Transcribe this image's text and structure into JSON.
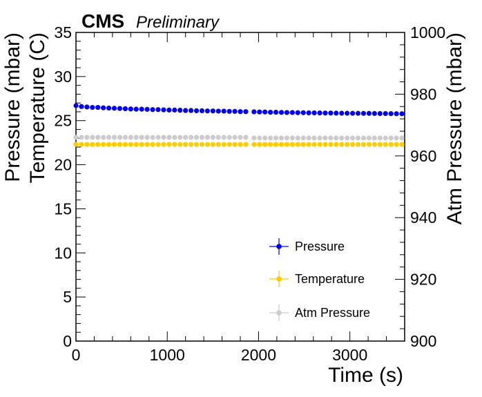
{
  "header": {
    "experiment": "CMS",
    "status": "Preliminary"
  },
  "chart_data": {
    "type": "scatter",
    "xlabel": "Time (s)",
    "ylabel_line1": "Pressure (mbar)",
    "ylabel_line2": "Temperature (C)",
    "ylabel_right": "Atm Pressure (mbar)",
    "xlim": [
      0,
      3600
    ],
    "ylim": [
      0,
      35
    ],
    "ylim_right": [
      900,
      1000
    ],
    "xticks": [
      "0",
      "1000",
      "2000",
      "3000"
    ],
    "yticks": [
      "0",
      "5",
      "10",
      "15",
      "20",
      "25",
      "30",
      "35"
    ],
    "yticks_right": [
      "900",
      "920",
      "940",
      "960",
      "980",
      "1000"
    ],
    "x": [
      0,
      60,
      120,
      180,
      240,
      300,
      360,
      420,
      480,
      540,
      600,
      660,
      720,
      780,
      840,
      900,
      960,
      1020,
      1080,
      1140,
      1200,
      1260,
      1320,
      1380,
      1440,
      1500,
      1560,
      1620,
      1680,
      1740,
      1800,
      1860,
      1950,
      2010,
      2070,
      2130,
      2190,
      2250,
      2310,
      2370,
      2430,
      2490,
      2550,
      2610,
      2670,
      2730,
      2790,
      2850,
      2910,
      2970,
      3030,
      3090,
      3150,
      3210,
      3270,
      3330,
      3390,
      3450,
      3510,
      3570
    ],
    "series": [
      {
        "name": "Pressure",
        "axis": "left",
        "color": "#0000ee",
        "values": [
          26.7,
          26.6,
          26.55,
          26.5,
          26.5,
          26.45,
          26.42,
          26.4,
          26.38,
          26.35,
          26.32,
          26.3,
          26.3,
          26.28,
          26.25,
          26.25,
          26.22,
          26.2,
          26.2,
          26.18,
          26.15,
          26.15,
          26.12,
          26.12,
          26.1,
          26.1,
          26.08,
          26.08,
          26.05,
          26.05,
          26.02,
          26.02,
          26.0,
          25.98,
          25.98,
          25.95,
          25.95,
          25.93,
          25.92,
          25.92,
          25.9,
          25.9,
          25.88,
          25.88,
          25.87,
          25.86,
          25.86,
          25.85,
          25.84,
          25.84,
          25.83,
          25.83,
          25.82,
          25.82,
          25.81,
          25.8,
          25.8,
          25.79,
          25.78,
          25.78
        ]
      },
      {
        "name": "Temperature",
        "axis": "left",
        "color": "#ffcc00",
        "values": [
          22.3,
          22.3,
          22.3,
          22.3,
          22.3,
          22.3,
          22.3,
          22.3,
          22.3,
          22.3,
          22.3,
          22.3,
          22.3,
          22.3,
          22.3,
          22.3,
          22.3,
          22.3,
          22.3,
          22.3,
          22.3,
          22.3,
          22.3,
          22.3,
          22.3,
          22.3,
          22.3,
          22.3,
          22.3,
          22.3,
          22.3,
          22.3,
          22.3,
          22.3,
          22.3,
          22.3,
          22.3,
          22.3,
          22.3,
          22.3,
          22.3,
          22.3,
          22.3,
          22.3,
          22.3,
          22.3,
          22.3,
          22.3,
          22.3,
          22.3,
          22.3,
          22.3,
          22.3,
          22.3,
          22.3,
          22.3,
          22.3,
          22.3,
          22.3,
          22.3
        ]
      },
      {
        "name": "Atm Pressure",
        "axis": "right",
        "color": "#cccccc",
        "values": [
          966.0,
          966.0,
          966.0,
          966.0,
          966.0,
          966.0,
          966.0,
          966.0,
          966.0,
          966.0,
          966.0,
          966.0,
          966.0,
          966.0,
          966.0,
          966.0,
          966.0,
          966.0,
          966.0,
          966.0,
          966.0,
          966.0,
          966.0,
          966.0,
          966.0,
          966.0,
          966.0,
          966.0,
          966.0,
          966.0,
          966.0,
          966.0,
          965.8,
          965.8,
          965.8,
          965.8,
          965.8,
          965.8,
          965.8,
          965.8,
          965.8,
          965.8,
          965.8,
          965.8,
          965.8,
          965.8,
          965.8,
          965.8,
          965.8,
          965.8,
          965.8,
          965.8,
          965.8,
          965.8,
          965.8,
          965.8,
          965.8,
          965.8,
          965.8,
          965.8
        ]
      }
    ],
    "legend": {
      "placement": "bottom-right",
      "entries": [
        "Pressure",
        "Temperature",
        "Atm Pressure"
      ]
    },
    "grid": false
  }
}
